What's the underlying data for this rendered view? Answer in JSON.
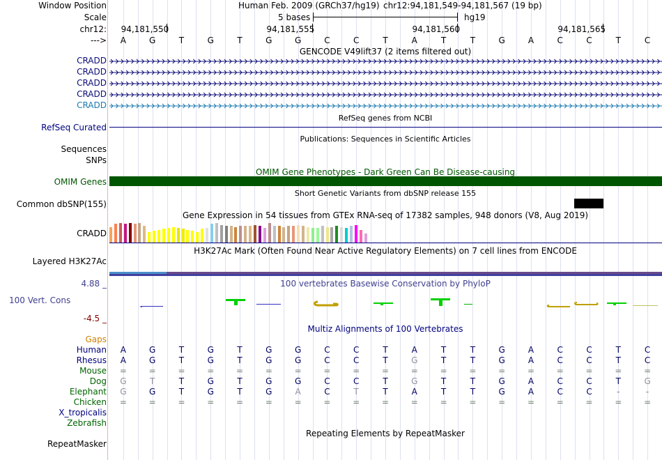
{
  "header": {
    "window_position_label": "Window Position",
    "scale_label": "Scale",
    "chrom_label": "chr12:",
    "arrow_label": "--->",
    "assembly": "Human Feb. 2009 (GRCh37/hg19)",
    "position": "chr12:94,181,549-94,181,567 (19 bp)",
    "scale_value": "5 bases",
    "scale_db": "hg19",
    "coords": [
      "94,181,550",
      "94,181,555",
      "94,181,560",
      "94,181,565"
    ]
  },
  "sequence": [
    "A",
    "G",
    "T",
    "G",
    "T",
    "G",
    "G",
    "C",
    "C",
    "T",
    "A",
    "T",
    "T",
    "G",
    "A",
    "C",
    "C",
    "T",
    "C"
  ],
  "gencode": {
    "title": "GENCODE V49lift37 (2 items filtered out)",
    "tracks": [
      "CRADD",
      "CRADD",
      "CRADD",
      "CRADD",
      "CRADD"
    ]
  },
  "refseq": {
    "title": "RefSeq genes from NCBI",
    "label": "RefSeq Curated"
  },
  "publications": {
    "title": "Publications: Sequences in Scientific Articles",
    "label1": "Sequences",
    "label2": "SNPs"
  },
  "omim": {
    "title": "OMIM Gene Phenotypes - Dark Green Can Be Disease-causing",
    "label": "OMIM Genes"
  },
  "dbsnp": {
    "title": "Short Genetic Variants from dbSNP release 155",
    "label": "Common dbSNP(155)"
  },
  "gtex": {
    "title": "Gene Expression in 54 tissues from GTEx RNA-seq of 17382 samples, 948 donors (V8, Aug 2019)",
    "label": "CRADD",
    "values": [
      0.8,
      0.95,
      1.0,
      0.95,
      1.0,
      0.95,
      1.0,
      0.85,
      0.55,
      0.6,
      0.65,
      0.7,
      0.75,
      0.8,
      0.75,
      0.7,
      0.65,
      0.6,
      0.55,
      0.7,
      0.75,
      0.95,
      1.0,
      0.9,
      0.85,
      0.85,
      0.8,
      0.85,
      0.85,
      0.85,
      0.9,
      0.85,
      0.75,
      1.0,
      0.85,
      0.85,
      0.8,
      0.85,
      0.85,
      0.9,
      0.85,
      0.8,
      0.75,
      0.75,
      0.85,
      0.8,
      0.8,
      0.85,
      0.8,
      0.75,
      0.85,
      0.9,
      0.65,
      0.45
    ],
    "colors": [
      "#f4a460",
      "#ff7f50",
      "#cd5c5c",
      "#c71585",
      "#8b0000",
      "#e9967a",
      "#c4a484",
      "#deb887",
      "#ffff00",
      "#ffff00",
      "#ffff00",
      "#ffff00",
      "#ffff00",
      "#ffff00",
      "#e6e600",
      "#eeee00",
      "#ffff00",
      "#ffff00",
      "#ffff00",
      "#ffff00",
      "#e0e0e0",
      "#87ceeb",
      "#c0c0c0",
      "#a0a0a0",
      "#808080",
      "#d2b48c",
      "#cd853f",
      "#bc8f8f",
      "#d2b48c",
      "#deb887",
      "#a0522d",
      "#8b008b",
      "#dda0dd",
      "#bc8f8f",
      "#c0c0c0",
      "#cd853f",
      "#d2b48c",
      "#c4a484",
      "#e9967a",
      "#f5deb3",
      "#d2b48c",
      "#eee8aa",
      "#90ee90",
      "#98fb98",
      "#c0c0c0",
      "#f0e68c",
      "#a9a9a9",
      "#228b22",
      "#dcdcdc",
      "#00ced1",
      "#b0c4de",
      "#ff00ff",
      "#ff69b4",
      "#dda0dd"
    ]
  },
  "h3k27ac": {
    "title": "H3K27Ac Mark (Often Found Near Active Regulatory Elements) on 7 cell lines from ENCODE",
    "label": "Layered H3K27Ac"
  },
  "phylop": {
    "title": "100 vertebrates Basewise Conservation by PhyloP",
    "label": "100 Vert. Cons",
    "max": "4.88 _",
    "min": "-4.5 _"
  },
  "multiz": {
    "title": "Multiz Alignments of 100 Vertebrates",
    "gaps_label": "Gaps",
    "rows": [
      {
        "species": "Human",
        "seq": [
          "A",
          "G",
          "T",
          "G",
          "T",
          "G",
          "G",
          "C",
          "C",
          "T",
          "A",
          "T",
          "T",
          "G",
          "A",
          "C",
          "C",
          "T",
          "C"
        ]
      },
      {
        "species": "Rhesus",
        "seq": [
          "A",
          "G",
          "T",
          "G",
          "T",
          "G",
          "G",
          "C",
          "C",
          "T",
          "G",
          "T",
          "T",
          "G",
          "A",
          "C",
          "C",
          "T",
          "C"
        ]
      },
      {
        "species": "Mouse",
        "seq": [
          "=",
          "=",
          "=",
          "=",
          "=",
          "=",
          "=",
          "=",
          "=",
          "=",
          "=",
          "=",
          "=",
          "=",
          "=",
          "=",
          "=",
          "=",
          "="
        ]
      },
      {
        "species": "Dog",
        "seq": [
          "G",
          "T",
          "T",
          "G",
          "T",
          "G",
          "G",
          "C",
          "C",
          "T",
          "G",
          "T",
          "T",
          "G",
          "A",
          "C",
          "C",
          "T",
          "G"
        ]
      },
      {
        "species": "Elephant",
        "seq": [
          "G",
          "G",
          "T",
          "G",
          "T",
          "G",
          "A",
          "C",
          "T",
          "T",
          "A",
          "T",
          "T",
          "G",
          "A",
          "C",
          "C",
          "-",
          "-"
        ]
      },
      {
        "species": "Chicken",
        "seq": [
          "=",
          "=",
          "=",
          "=",
          "=",
          "=",
          "=",
          "=",
          "=",
          "=",
          "=",
          "=",
          "=",
          "=",
          "=",
          "=",
          "=",
          "=",
          "="
        ]
      },
      {
        "species": "X_tropicalis",
        "seq": []
      },
      {
        "species": "Zebrafish",
        "seq": []
      }
    ]
  },
  "repeatmasker": {
    "title": "Repeating Elements by RepeatMasker",
    "label": "RepeatMasker"
  },
  "colors": {
    "track_label_blue": "#000080",
    "gencode_dark": "#0c0c78",
    "gencode_light": "#1a7ab0",
    "omim_green": "#005500",
    "gaps_orange": "#d08000",
    "species_green": "#006400",
    "phylop_blue": "#404090",
    "phylop_red": "#800000"
  }
}
